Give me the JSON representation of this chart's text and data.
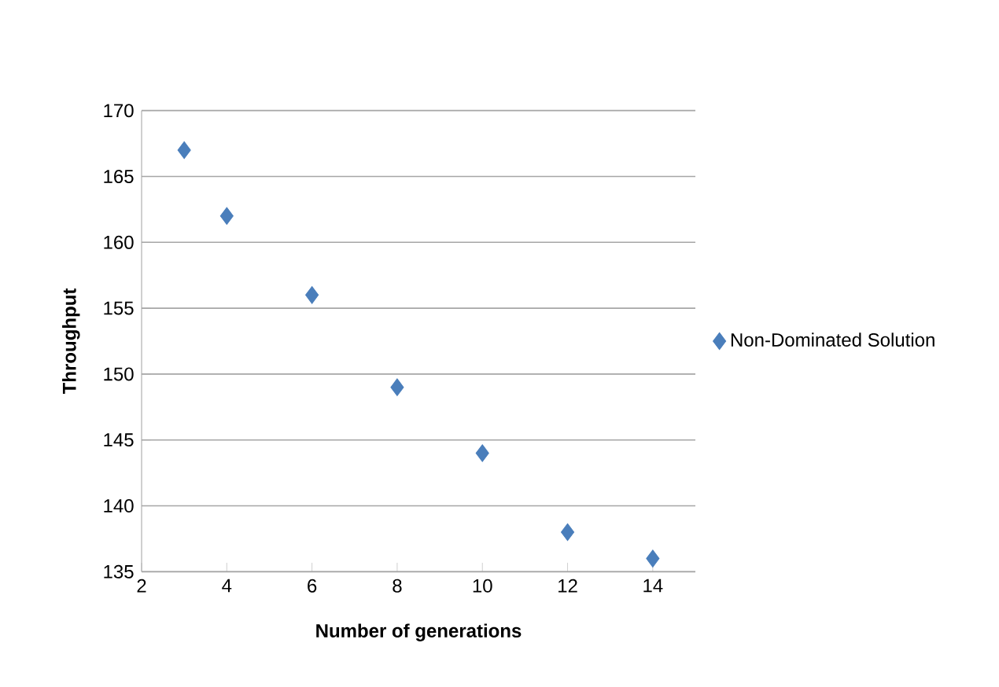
{
  "chart_data": {
    "type": "scatter",
    "xlabel": "Number of generations",
    "ylabel": "Throughput",
    "series": [
      {
        "name": "Non-Dominated Solution",
        "color": "#4a7ebb",
        "x": [
          3,
          4,
          6,
          8,
          10,
          12,
          14
        ],
        "values": [
          167,
          162,
          156,
          149,
          144,
          138,
          136
        ]
      }
    ],
    "xlim": [
      2,
      15
    ],
    "ylim": [
      135,
      170
    ],
    "xticks": [
      2,
      4,
      6,
      8,
      10,
      12,
      14
    ],
    "yticks": [
      135,
      140,
      145,
      150,
      155,
      160,
      165,
      170
    ],
    "grid": "y",
    "legend": "right",
    "marker": "diamond"
  }
}
